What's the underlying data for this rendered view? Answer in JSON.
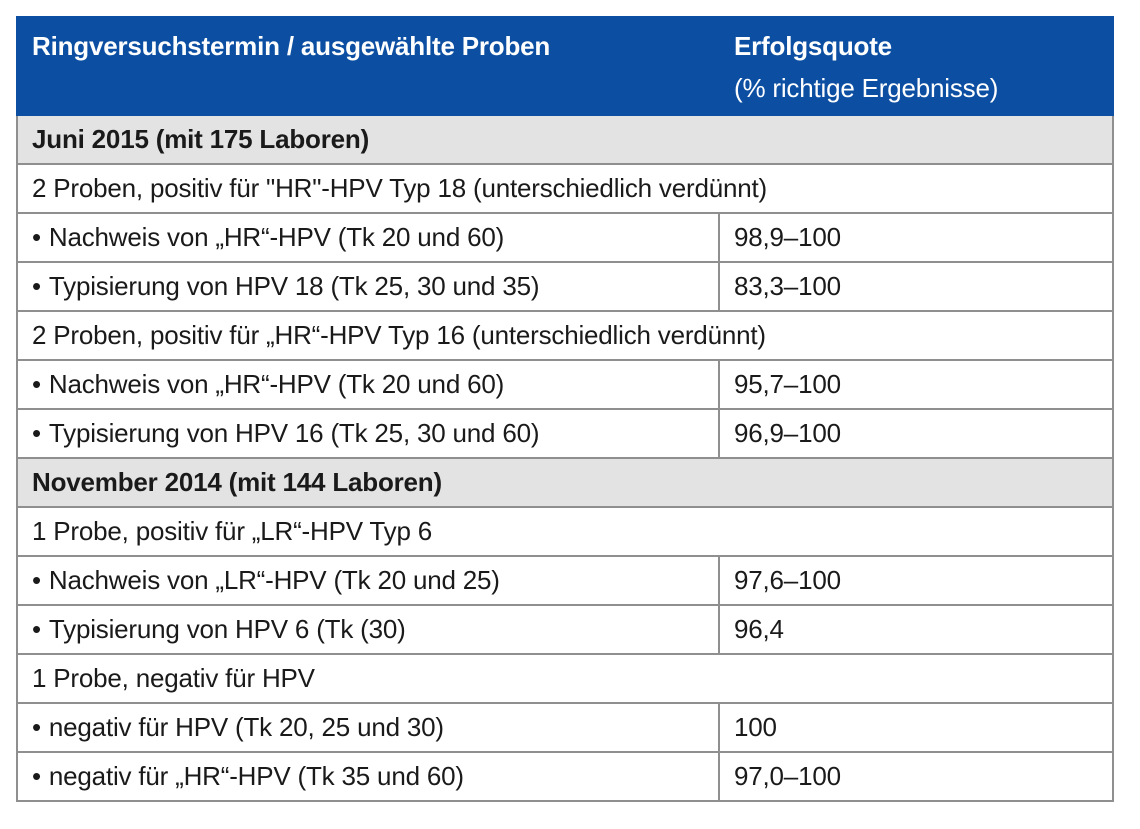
{
  "header": {
    "col1": "Ringversuchstermin / ausgewählte Proben",
    "col2_title": "Erfolgsquote",
    "col2_sub": "(% richtige Ergebnisse)"
  },
  "rows": [
    {
      "type": "section",
      "label": "Juni 2015 (mit 175 Laboren)"
    },
    {
      "type": "group",
      "label": "2 Proben, positiv für \"HR\"-HPV Typ 18 (unterschiedlich verdünnt)"
    },
    {
      "type": "item",
      "label": "Nachweis von „HR“-HPV (Tk 20 und 60)",
      "value": "98,9–100"
    },
    {
      "type": "item",
      "label": "Typisierung von HPV 18 (Tk 25, 30 und 35)",
      "value": "83,3–100"
    },
    {
      "type": "group",
      "label": "2 Proben, positiv für „HR“-HPV Typ 16 (unterschiedlich verdünnt)"
    },
    {
      "type": "item",
      "label": "Nachweis von „HR“-HPV (Tk 20 und 60)",
      "value": "95,7–100"
    },
    {
      "type": "item",
      "label": "Typisierung von HPV 16 (Tk 25, 30 und 60)",
      "value": "96,9–100"
    },
    {
      "type": "section",
      "label": "November 2014 (mit 144 Laboren)"
    },
    {
      "type": "group",
      "label": "1 Probe, positiv für „LR“-HPV Typ 6"
    },
    {
      "type": "item",
      "label": "Nachweis von „LR“-HPV (Tk 20 und 25)",
      "value": "97,6–100"
    },
    {
      "type": "item",
      "label": "Typisierung von HPV 6 (Tk (30)",
      "value": "96,4"
    },
    {
      "type": "group",
      "label": "1 Probe, negativ für HPV"
    },
    {
      "type": "item",
      "label": "negativ für HPV (Tk 20, 25 und 30)",
      "value": "100"
    },
    {
      "type": "item",
      "label": "negativ für „HR“-HPV (Tk 35 und 60)",
      "value": "97,0–100"
    }
  ],
  "bullet": "•",
  "colors": {
    "header_bg": "#0b4ea2",
    "section_bg": "#e3e3e3",
    "border": "#8f8f8f"
  }
}
